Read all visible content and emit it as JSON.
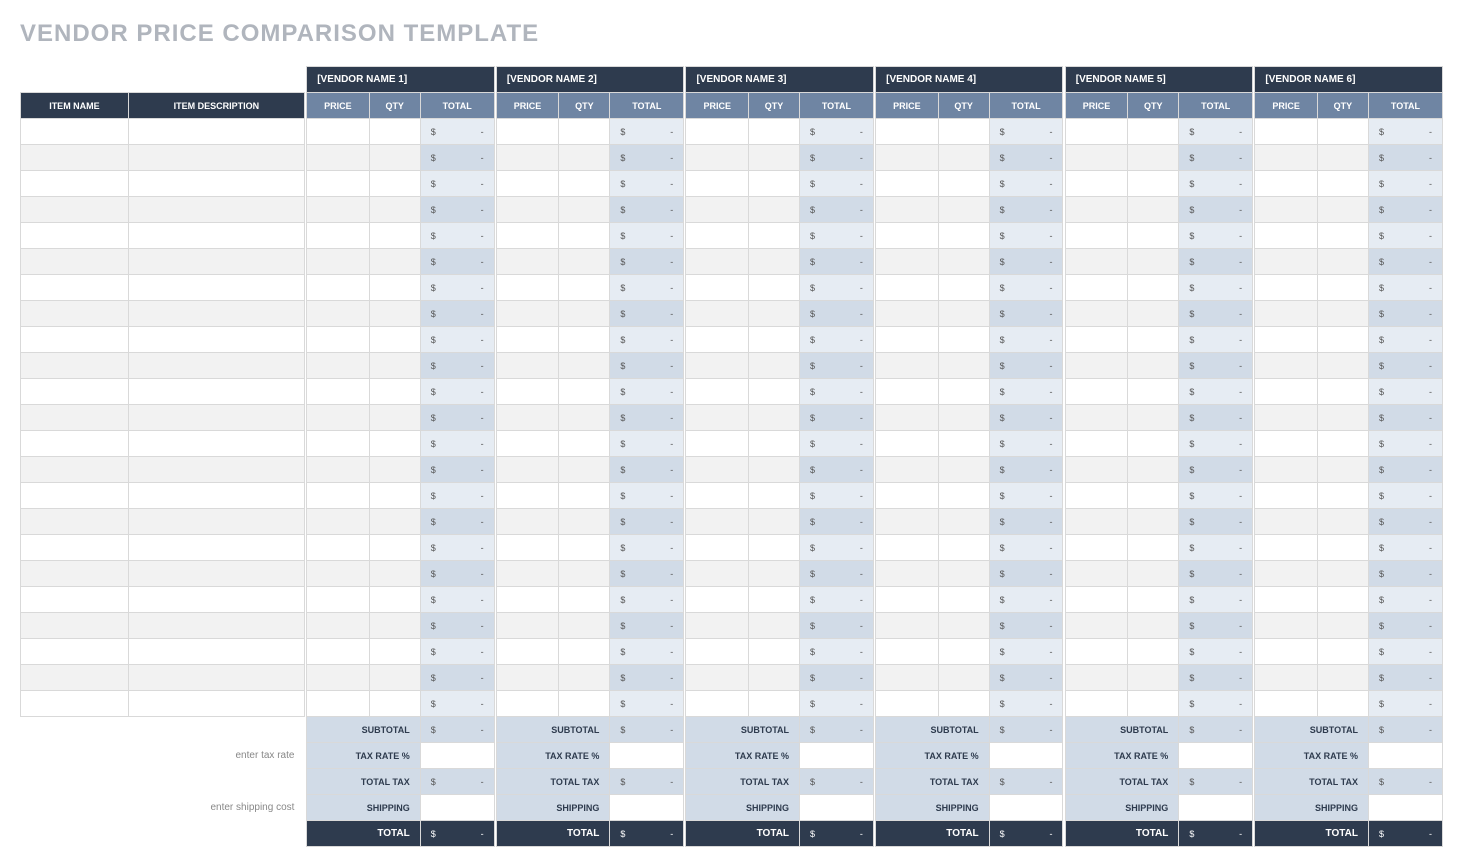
{
  "title": "VENDOR PRICE COMPARISON TEMPLATE",
  "itemColumns": {
    "name": "ITEM NAME",
    "description": "ITEM DESCRIPTION"
  },
  "vendorColumns": {
    "price": "PRICE",
    "qty": "QTY",
    "total": "TOTAL"
  },
  "vendors": [
    {
      "name": "[VENDOR NAME 1]"
    },
    {
      "name": "[VENDOR NAME 2]"
    },
    {
      "name": "[VENDOR NAME 3]"
    },
    {
      "name": "[VENDOR NAME 4]"
    },
    {
      "name": "[VENDOR NAME 5]"
    },
    {
      "name": "[VENDOR NAME 6]"
    }
  ],
  "rowCount": 23,
  "currencySymbol": "$",
  "emptyValue": "-",
  "summary": {
    "subtotal": "SUBTOTAL",
    "taxRate": "TAX RATE %",
    "taxRateHint": "enter tax rate",
    "totalTax": "TOTAL TAX",
    "shipping": "SHIPPING",
    "shippingHint": "enter shipping cost",
    "total": "TOTAL"
  },
  "colors": {
    "headerDark": "#2e3b4e",
    "headerBlue": "#6f85a3",
    "totalLight": "#e6ecf3",
    "totalAlt": "#d1dbe7",
    "rowAlt": "#f2f2f2",
    "titleGrey": "#b0b5bd",
    "border": "#d9d9d9"
  }
}
